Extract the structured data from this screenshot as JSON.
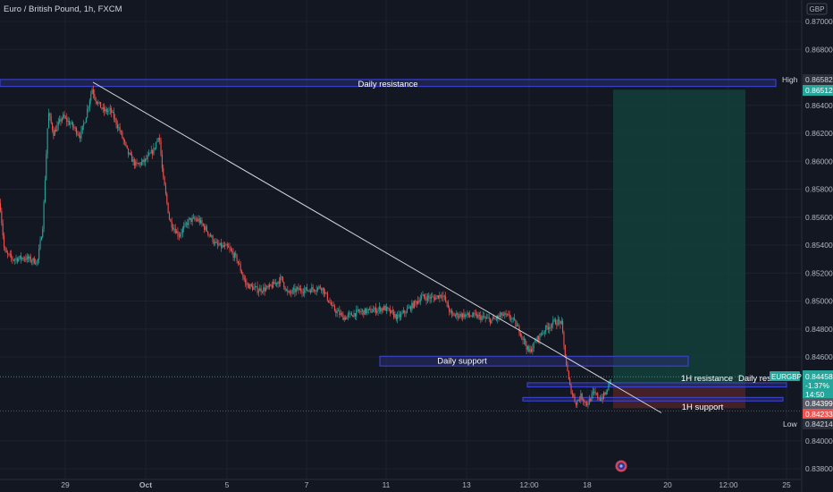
{
  "header": {
    "title": "Euro / British Pound, 1h, FXCM",
    "currency": "GBP"
  },
  "colors": {
    "background": "#131722",
    "up": "#26a69a",
    "down": "#ef5350",
    "zone_stroke": "#3d46e0",
    "zone_fill": "#2a2e6e",
    "target_fill": "#143d3a",
    "stop_fill": "#4a2128",
    "trendline": "#d1d4dc",
    "grid": "#1e222d",
    "axis_text": "#b2b5be"
  },
  "chart_data": {
    "type": "candlestick",
    "title": "Euro / British Pound, 1h, FXCM",
    "symbol": "EURGBP",
    "yaxis": {
      "ticks": [
        "0.87000",
        "0.86800",
        "0.86400",
        "0.86200",
        "0.86000",
        "0.85800",
        "0.85600",
        "0.85400",
        "0.85200",
        "0.85000",
        "0.84800",
        "0.84600",
        "0.84000",
        "0.83800"
      ],
      "range": [
        0.8372,
        0.8716
      ]
    },
    "xaxis": {
      "ticks": [
        "29",
        "Oct",
        "5",
        "7",
        "11",
        "13",
        "12:00",
        "18",
        "20",
        "12:00",
        "25"
      ]
    },
    "price_path": [
      [
        0,
        0.857
      ],
      [
        5,
        0.8535
      ],
      [
        14,
        0.853
      ],
      [
        27,
        0.8531
      ],
      [
        42,
        0.8528
      ],
      [
        48,
        0.8555
      ],
      [
        54,
        0.8635
      ],
      [
        60,
        0.862
      ],
      [
        70,
        0.8632
      ],
      [
        80,
        0.8626
      ],
      [
        90,
        0.8618
      ],
      [
        96,
        0.8632
      ],
      [
        103,
        0.8652
      ],
      [
        108,
        0.8643
      ],
      [
        116,
        0.8636
      ],
      [
        124,
        0.8636
      ],
      [
        134,
        0.8622
      ],
      [
        143,
        0.8606
      ],
      [
        152,
        0.8597
      ],
      [
        162,
        0.86
      ],
      [
        172,
        0.8608
      ],
      [
        178,
        0.862
      ],
      [
        182,
        0.859
      ],
      [
        190,
        0.8557
      ],
      [
        200,
        0.8547
      ],
      [
        212,
        0.8558
      ],
      [
        222,
        0.8558
      ],
      [
        232,
        0.855
      ],
      [
        242,
        0.854
      ],
      [
        255,
        0.8538
      ],
      [
        265,
        0.853
      ],
      [
        275,
        0.8512
      ],
      [
        288,
        0.8508
      ],
      [
        300,
        0.8509
      ],
      [
        315,
        0.8516
      ],
      [
        322,
        0.8505
      ],
      [
        332,
        0.8508
      ],
      [
        345,
        0.8508
      ],
      [
        360,
        0.851
      ],
      [
        372,
        0.8495
      ],
      [
        385,
        0.8488
      ],
      [
        400,
        0.8492
      ],
      [
        415,
        0.8493
      ],
      [
        430,
        0.8495
      ],
      [
        445,
        0.8488
      ],
      [
        460,
        0.8496
      ],
      [
        472,
        0.8503
      ],
      [
        485,
        0.8502
      ],
      [
        495,
        0.8505
      ],
      [
        505,
        0.849
      ],
      [
        520,
        0.849
      ],
      [
        535,
        0.8489
      ],
      [
        550,
        0.8486
      ],
      [
        562,
        0.849
      ],
      [
        572,
        0.8488
      ],
      [
        582,
        0.8478
      ],
      [
        592,
        0.8463
      ],
      [
        600,
        0.8472
      ],
      [
        610,
        0.848
      ],
      [
        620,
        0.8485
      ],
      [
        628,
        0.8485
      ],
      [
        632,
        0.8462
      ],
      [
        637,
        0.844
      ],
      [
        644,
        0.8427
      ],
      [
        650,
        0.8432
      ],
      [
        657,
        0.8426
      ],
      [
        664,
        0.8434
      ],
      [
        672,
        0.843
      ],
      [
        678,
        0.8434
      ],
      [
        684,
        0.84458
      ]
    ],
    "zones": [
      {
        "name": "daily-resistance",
        "label": "Daily resistance",
        "top": 0.86585,
        "bottom": 0.86535,
        "x0": 0,
        "x1": 868
      },
      {
        "name": "daily-support",
        "label": "Daily support",
        "top": 0.84605,
        "bottom": 0.84535,
        "x0": 425,
        "x1": 770
      },
      {
        "name": "1h-resistance",
        "label": "1H resistance",
        "top": 0.84415,
        "bottom": 0.84385,
        "x0": 590,
        "x1": 880
      },
      {
        "name": "1h-support",
        "label": "1H support",
        "top": 0.8431,
        "bottom": 0.84285,
        "x0": 585,
        "x1": 876
      }
    ],
    "daily_resistance_label_2": "Daily resi",
    "trendline": {
      "x0": 104,
      "y0": 0.86565,
      "x1": 740,
      "y1": 0.842
    },
    "position": {
      "x0": 686,
      "x1": 834,
      "entry": 0.84399,
      "target": 0.86512,
      "stop": 0.84233
    },
    "reference_lines": [
      0.84458,
      0.84214
    ],
    "price_labels": {
      "high_tag": "High",
      "high_value": "0.86582",
      "target_value": "0.86512",
      "symbol_tag": "EURGBP",
      "current_value": "0.84458",
      "change": "-1.37%",
      "countdown": "14:50",
      "entry_value": "0.84399",
      "stop_value": "0.84233",
      "low_tag": "Low",
      "low_value": "0.84214"
    }
  }
}
